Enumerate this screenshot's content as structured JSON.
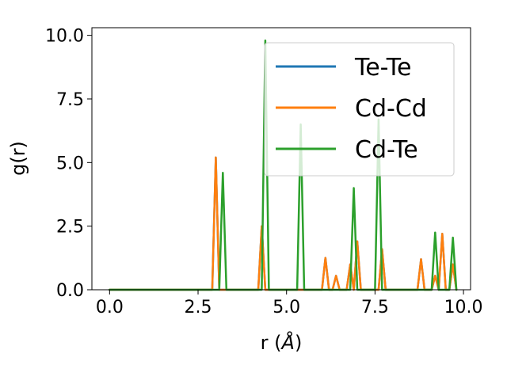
{
  "chart_data": {
    "type": "line",
    "title": "",
    "xlabel": "r (",
    "xlabel_symbol": "Å",
    "xlabel_suffix": ")",
    "ylabel": "g(r)",
    "xlim": [
      -0.5,
      10.2
    ],
    "ylim": [
      0,
      10.3
    ],
    "xticks": [
      0.0,
      2.5,
      5.0,
      7.5,
      10.0
    ],
    "xtick_labels": [
      "0.0",
      "2.5",
      "5.0",
      "7.5",
      "10.0"
    ],
    "yticks": [
      0.0,
      2.5,
      5.0,
      7.5,
      10.0
    ],
    "ytick_labels": [
      "0.0",
      "2.5",
      "5.0",
      "7.5",
      "10.0"
    ],
    "grid": false,
    "legend_position": "top-right",
    "series": [
      {
        "name": "Te-Te",
        "color": "#1f77b4",
        "x": [
          0.0,
          2.9,
          3.0,
          3.1,
          4.2,
          4.3,
          4.4,
          6.0,
          6.1,
          6.2,
          6.3,
          6.4,
          6.5,
          6.7,
          6.8,
          6.9,
          7.0,
          7.1,
          7.2,
          7.6,
          7.7,
          7.8,
          8.7,
          8.8,
          8.9,
          9.1,
          9.2,
          9.3,
          9.4,
          9.5,
          9.6,
          9.7,
          9.8
        ],
        "y": [
          0.0,
          0.0,
          5.2,
          0.0,
          0.0,
          2.5,
          0.0,
          0.0,
          1.25,
          0.0,
          0.0,
          0.55,
          0.0,
          0.0,
          1.0,
          0.0,
          1.9,
          0.0,
          0.0,
          0.0,
          1.6,
          0.0,
          0.0,
          1.2,
          0.0,
          0.0,
          0.55,
          0.0,
          2.2,
          0.0,
          0.0,
          1.0,
          0.0
        ]
      },
      {
        "name": "Cd-Cd",
        "color": "#ff7f0e",
        "x": [
          0.0,
          2.9,
          3.0,
          3.1,
          4.2,
          4.3,
          4.4,
          6.0,
          6.1,
          6.2,
          6.3,
          6.4,
          6.5,
          6.7,
          6.8,
          6.9,
          7.0,
          7.1,
          7.2,
          7.6,
          7.7,
          7.8,
          8.7,
          8.8,
          8.9,
          9.1,
          9.2,
          9.3,
          9.4,
          9.5,
          9.6,
          9.7,
          9.8
        ],
        "y": [
          0.0,
          0.0,
          5.2,
          0.0,
          0.0,
          2.5,
          0.0,
          0.0,
          1.25,
          0.0,
          0.0,
          0.55,
          0.0,
          0.0,
          1.0,
          0.0,
          1.9,
          0.0,
          0.0,
          0.0,
          1.6,
          0.0,
          0.0,
          1.2,
          0.0,
          0.0,
          0.55,
          0.0,
          2.2,
          0.0,
          0.0,
          1.0,
          0.0
        ]
      },
      {
        "name": "Cd-Te",
        "color": "#2ca02c",
        "x": [
          0.0,
          3.1,
          3.2,
          3.3,
          4.3,
          4.4,
          4.5,
          5.3,
          5.4,
          5.5,
          6.8,
          6.9,
          7.0,
          7.5,
          7.6,
          7.7,
          9.1,
          9.2,
          9.3,
          9.6,
          9.7,
          9.8
        ],
        "y": [
          0.0,
          0.0,
          4.6,
          0.0,
          0.0,
          9.8,
          0.0,
          0.0,
          6.5,
          0.0,
          0.0,
          4.0,
          0.0,
          0.0,
          6.7,
          0.0,
          0.0,
          2.25,
          0.0,
          0.0,
          2.05,
          0.0
        ]
      }
    ]
  }
}
